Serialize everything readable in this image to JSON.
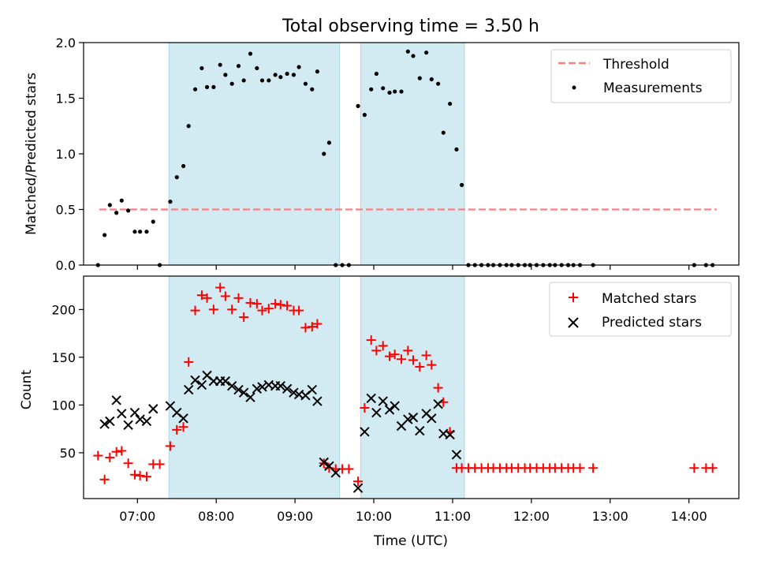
{
  "title": "Total observing time = 3.50 h",
  "xlabel": "Time (UTC)",
  "x_ticks": [
    "07:00",
    "08:00",
    "09:00",
    "10:00",
    "11:00",
    "12:00",
    "13:00",
    "14:00"
  ],
  "colors": {
    "observing_windows": "#add8e6",
    "threshold": "#ff7f7f",
    "measurements": "#000000",
    "matched": "#ff0000",
    "predicted": "#000000"
  },
  "chart_data": [
    {
      "type": "scatter",
      "panel": "top",
      "ylabel": "Matched/Predicted stars",
      "ylim": [
        0,
        2.0
      ],
      "y_ticks": [
        "0.0",
        "0.5",
        "1.0",
        "1.5",
        "2.0"
      ],
      "xlim": [
        "06:19",
        "14:38"
      ],
      "observing_windows": [
        [
          "07:24",
          "09:34"
        ],
        [
          "09:50",
          "11:09"
        ]
      ],
      "threshold": {
        "name": "Threshold",
        "value": 0.5,
        "x_range": [
          "06:31",
          "14:21"
        ]
      },
      "legend": {
        "placement": "top-right",
        "entries": [
          "Threshold",
          "Measurements"
        ]
      },
      "series": [
        {
          "name": "Measurements",
          "points": [
            [
              "06:30",
              0.0
            ],
            [
              "06:35",
              0.27
            ],
            [
              "06:39",
              0.54
            ],
            [
              "06:44",
              0.47
            ],
            [
              "06:48",
              0.58
            ],
            [
              "06:53",
              0.49
            ],
            [
              "06:58",
              0.3
            ],
            [
              "07:02",
              0.3
            ],
            [
              "07:07",
              0.3
            ],
            [
              "07:12",
              0.39
            ],
            [
              "07:17",
              0.0
            ],
            [
              "07:25",
              0.57
            ],
            [
              "07:30",
              0.79
            ],
            [
              "07:35",
              0.89
            ],
            [
              "07:39",
              1.25
            ],
            [
              "07:44",
              1.58
            ],
            [
              "07:49",
              1.77
            ],
            [
              "07:53",
              1.6
            ],
            [
              "07:58",
              1.6
            ],
            [
              "08:03",
              1.8
            ],
            [
              "08:07",
              1.71
            ],
            [
              "08:12",
              1.63
            ],
            [
              "08:17",
              1.79
            ],
            [
              "08:21",
              1.66
            ],
            [
              "08:26",
              1.9
            ],
            [
              "08:31",
              1.77
            ],
            [
              "08:35",
              1.66
            ],
            [
              "08:40",
              1.66
            ],
            [
              "08:45",
              1.71
            ],
            [
              "08:49",
              1.69
            ],
            [
              "08:54",
              1.72
            ],
            [
              "08:59",
              1.71
            ],
            [
              "09:03",
              1.78
            ],
            [
              "09:08",
              1.63
            ],
            [
              "09:13",
              1.58
            ],
            [
              "09:17",
              1.74
            ],
            [
              "09:22",
              1.0
            ],
            [
              "09:26",
              1.1
            ],
            [
              "09:31",
              0.0
            ],
            [
              "09:36",
              0.0
            ],
            [
              "09:41",
              0.0
            ],
            [
              "09:48",
              1.43
            ],
            [
              "09:53",
              1.35
            ],
            [
              "09:58",
              1.58
            ],
            [
              "10:02",
              1.72
            ],
            [
              "10:07",
              1.59
            ],
            [
              "10:12",
              1.55
            ],
            [
              "10:16",
              1.56
            ],
            [
              "10:21",
              1.56
            ],
            [
              "10:26",
              1.92
            ],
            [
              "10:30",
              1.88
            ],
            [
              "10:35",
              1.68
            ],
            [
              "10:40",
              1.91
            ],
            [
              "10:44",
              1.67
            ],
            [
              "10:49",
              1.63
            ],
            [
              "10:53",
              1.19
            ],
            [
              "10:58",
              1.45
            ],
            [
              "11:03",
              1.04
            ],
            [
              "11:07",
              0.72
            ],
            [
              "11:12",
              0.0
            ],
            [
              "11:17",
              0.0
            ],
            [
              "11:22",
              0.0
            ],
            [
              "11:27",
              0.0
            ],
            [
              "11:31",
              0.0
            ],
            [
              "11:36",
              0.0
            ],
            [
              "11:41",
              0.0
            ],
            [
              "11:45",
              0.0
            ],
            [
              "11:50",
              0.0
            ],
            [
              "11:55",
              0.0
            ],
            [
              "11:59",
              0.0
            ],
            [
              "12:04",
              0.0
            ],
            [
              "12:09",
              0.0
            ],
            [
              "12:14",
              0.0
            ],
            [
              "12:18",
              0.0
            ],
            [
              "12:23",
              0.0
            ],
            [
              "12:28",
              0.0
            ],
            [
              "12:32",
              0.0
            ],
            [
              "12:37",
              0.0
            ],
            [
              "12:47",
              0.0
            ],
            [
              "14:04",
              0.0
            ],
            [
              "14:13",
              0.0
            ],
            [
              "14:18",
              0.0
            ]
          ]
        }
      ]
    },
    {
      "type": "scatter",
      "panel": "bottom",
      "ylabel": "Count",
      "ylim": [
        2,
        235
      ],
      "y_ticks": [
        "50",
        "100",
        "150",
        "200"
      ],
      "xlim": [
        "06:19",
        "14:38"
      ],
      "observing_windows": [
        [
          "07:24",
          "09:34"
        ],
        [
          "09:50",
          "11:09"
        ]
      ],
      "legend": {
        "placement": "top-right",
        "entries": [
          "Matched stars",
          "Predicted stars"
        ]
      },
      "series": [
        {
          "name": "Matched stars",
          "marker": "+",
          "points": [
            [
              "06:30",
              47
            ],
            [
              "06:35",
              22
            ],
            [
              "06:39",
              45
            ],
            [
              "06:44",
              51
            ],
            [
              "06:48",
              52
            ],
            [
              "06:53",
              39
            ],
            [
              "06:58",
              27
            ],
            [
              "07:02",
              26
            ],
            [
              "07:07",
              25
            ],
            [
              "07:12",
              38
            ],
            [
              "07:17",
              38
            ],
            [
              "07:25",
              57
            ],
            [
              "07:30",
              74
            ],
            [
              "07:35",
              77
            ],
            [
              "07:39",
              145
            ],
            [
              "07:44",
              199
            ],
            [
              "07:49",
              215
            ],
            [
              "07:53",
              212
            ],
            [
              "07:58",
              200
            ],
            [
              "08:03",
              223
            ],
            [
              "08:07",
              214
            ],
            [
              "08:12",
              200
            ],
            [
              "08:17",
              212
            ],
            [
              "08:21",
              192
            ],
            [
              "08:26",
              207
            ],
            [
              "08:31",
              206
            ],
            [
              "08:35",
              199
            ],
            [
              "08:40",
              201
            ],
            [
              "08:45",
              206
            ],
            [
              "08:49",
              205
            ],
            [
              "08:54",
              204
            ],
            [
              "08:59",
              199
            ],
            [
              "09:03",
              199
            ],
            [
              "09:08",
              181
            ],
            [
              "09:13",
              182
            ],
            [
              "09:17",
              185
            ],
            [
              "09:22",
              39
            ],
            [
              "09:26",
              34
            ],
            [
              "09:31",
              33
            ],
            [
              "09:36",
              33
            ],
            [
              "09:41",
              33
            ],
            [
              "09:48",
              20
            ],
            [
              "09:53",
              97
            ],
            [
              "09:58",
              168
            ],
            [
              "10:02",
              157
            ],
            [
              "10:07",
              162
            ],
            [
              "10:12",
              151
            ],
            [
              "10:16",
              153
            ],
            [
              "10:21",
              148
            ],
            [
              "10:26",
              157
            ],
            [
              "10:30",
              147
            ],
            [
              "10:35",
              140
            ],
            [
              "10:40",
              152
            ],
            [
              "10:44",
              142
            ],
            [
              "10:49",
              118
            ],
            [
              "10:53",
              103
            ],
            [
              "10:58",
              72
            ],
            [
              "11:03",
              34
            ],
            [
              "11:07",
              34
            ],
            [
              "11:12",
              34
            ],
            [
              "11:17",
              34
            ],
            [
              "11:22",
              34
            ],
            [
              "11:27",
              34
            ],
            [
              "11:31",
              34
            ],
            [
              "11:36",
              34
            ],
            [
              "11:41",
              34
            ],
            [
              "11:45",
              34
            ],
            [
              "11:50",
              34
            ],
            [
              "11:55",
              34
            ],
            [
              "11:59",
              34
            ],
            [
              "12:04",
              34
            ],
            [
              "12:09",
              34
            ],
            [
              "12:14",
              34
            ],
            [
              "12:18",
              34
            ],
            [
              "12:23",
              34
            ],
            [
              "12:28",
              34
            ],
            [
              "12:32",
              34
            ],
            [
              "12:37",
              34
            ],
            [
              "12:47",
              34
            ],
            [
              "14:04",
              34
            ],
            [
              "14:13",
              34
            ],
            [
              "14:18",
              34
            ]
          ]
        },
        {
          "name": "Predicted stars",
          "marker": "x",
          "points": [
            [
              "06:35",
              80
            ],
            [
              "06:39",
              83
            ],
            [
              "06:44",
              105
            ],
            [
              "06:48",
              91
            ],
            [
              "06:53",
              79
            ],
            [
              "06:58",
              92
            ],
            [
              "07:02",
              85
            ],
            [
              "07:07",
              83
            ],
            [
              "07:12",
              96
            ],
            [
              "07:25",
              99
            ],
            [
              "07:30",
              92
            ],
            [
              "07:35",
              86
            ],
            [
              "07:39",
              116
            ],
            [
              "07:44",
              126
            ],
            [
              "07:49",
              121
            ],
            [
              "07:53",
              131
            ],
            [
              "07:58",
              125
            ],
            [
              "08:03",
              125
            ],
            [
              "08:07",
              125
            ],
            [
              "08:12",
              120
            ],
            [
              "08:17",
              116
            ],
            [
              "08:21",
              113
            ],
            [
              "08:26",
              108
            ],
            [
              "08:31",
              117
            ],
            [
              "08:35",
              119
            ],
            [
              "08:40",
              121
            ],
            [
              "08:45",
              120
            ],
            [
              "08:49",
              120
            ],
            [
              "08:54",
              117
            ],
            [
              "08:59",
              113
            ],
            [
              "09:03",
              111
            ],
            [
              "09:08",
              110
            ],
            [
              "09:13",
              116
            ],
            [
              "09:17",
              104
            ],
            [
              "09:22",
              40
            ],
            [
              "09:26",
              36
            ],
            [
              "09:31",
              29
            ],
            [
              "09:48",
              13
            ],
            [
              "09:53",
              72
            ],
            [
              "09:58",
              107
            ],
            [
              "10:02",
              92
            ],
            [
              "10:07",
              104
            ],
            [
              "10:12",
              95
            ],
            [
              "10:16",
              99
            ],
            [
              "10:21",
              78
            ],
            [
              "10:26",
              85
            ],
            [
              "10:30",
              87
            ],
            [
              "10:35",
              73
            ],
            [
              "10:40",
              91
            ],
            [
              "10:44",
              86
            ],
            [
              "10:49",
              101
            ],
            [
              "10:53",
              70
            ],
            [
              "10:58",
              69
            ],
            [
              "11:03",
              48
            ]
          ]
        }
      ]
    }
  ]
}
